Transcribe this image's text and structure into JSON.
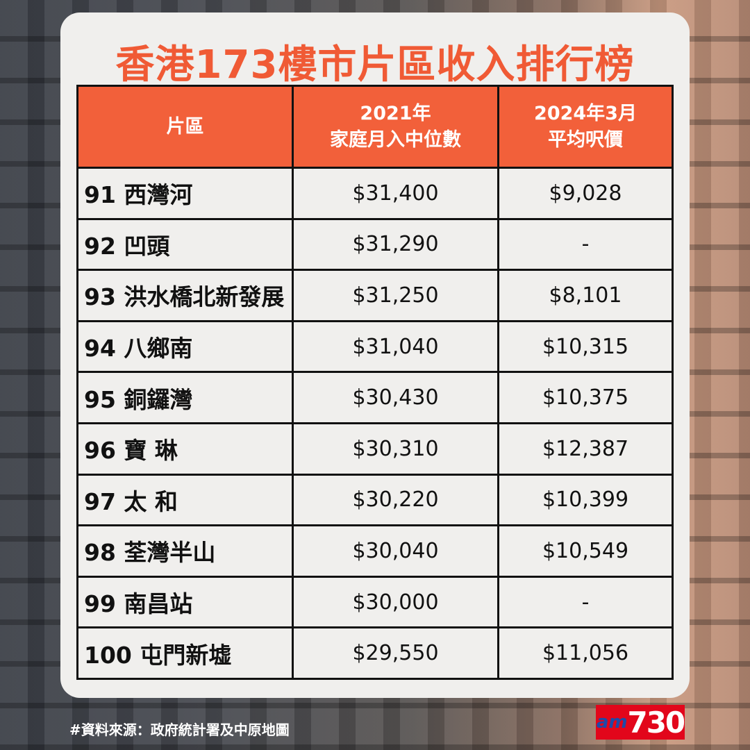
{
  "title": "香港173樓市片區收入排行榜",
  "headers": {
    "area": "片區",
    "income_1": "2021年",
    "income_2": "家庭月入中位數",
    "price_1": "2024年3月",
    "price_2": "平均呎價"
  },
  "rows": [
    {
      "area": "91 西灣河",
      "income": "$31,400",
      "price": "$9,028"
    },
    {
      "area": "92 凹頭",
      "income": "$31,290",
      "price": "-"
    },
    {
      "area": "93 洪水橋北新發展",
      "income": "$31,250",
      "price": "$8,101"
    },
    {
      "area": "94 八鄉南",
      "income": "$31,040",
      "price": "$10,315"
    },
    {
      "area": "95 銅鑼灣",
      "income": "$30,430",
      "price": "$10,375"
    },
    {
      "area": "96 寶 琳",
      "income": "$30,310",
      "price": "$12,387"
    },
    {
      "area": "97 太 和",
      "income": "$30,220",
      "price": "$10,399"
    },
    {
      "area": "98 荃灣半山",
      "income": "$30,040",
      "price": "$10,549"
    },
    {
      "area": "99 南昌站",
      "income": "$30,000",
      "price": "-"
    },
    {
      "area": "100 屯門新墟",
      "income": "$29,550",
      "price": "$11,056"
    }
  ],
  "footer": "#資料來源：政府統計署及中原地圖",
  "logo": {
    "prefix": "am",
    "number": "730"
  },
  "colors": {
    "accent": "#f05a35",
    "header_bg": "#f2603a",
    "card": "#f0efed",
    "logo_bg": "#e2061b"
  }
}
